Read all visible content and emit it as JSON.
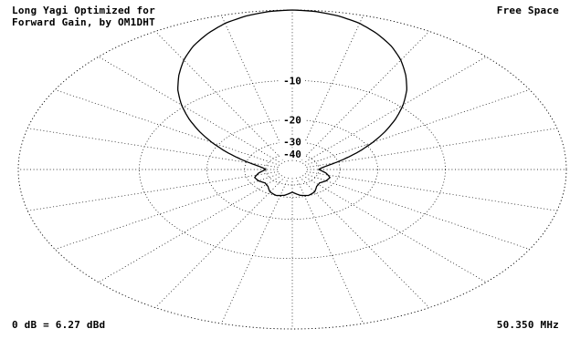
{
  "chart_data": {
    "type": "polar-elevation",
    "title": [
      "Long Yagi Optimized for",
      "Forward Gain, by OM1DHT"
    ],
    "environment": "Free Space",
    "reference": "0 dB = 6.27 dBd",
    "frequency": "50.350 MHz",
    "ring_labels_db": [
      "-10",
      "-20",
      "-30",
      "-40"
    ],
    "ring_levels_db": [
      0,
      -10,
      -20,
      -30,
      -40
    ],
    "grid": "dotted",
    "series": [
      {
        "angle_deg": [
          0,
          5,
          10,
          15,
          20,
          25,
          30,
          35,
          40,
          45,
          50,
          55,
          60,
          65,
          70,
          75,
          80,
          85,
          90,
          95,
          100,
          110,
          120,
          130,
          140,
          150,
          160,
          170,
          180
        ],
        "gain_db": [
          0,
          -0.1,
          -0.4,
          -0.9,
          -1.7,
          -2.7,
          -4,
          -5.6,
          -7.4,
          -9.6,
          -12.2,
          -15.2,
          -18.6,
          -22.5,
          -26.8,
          -31.3,
          -35.6,
          -38.5,
          -40,
          -38,
          -35.8,
          -33,
          -33.5,
          -35,
          -34,
          -31.2,
          -30.1,
          -31,
          -33.5
        ]
      }
    ]
  }
}
